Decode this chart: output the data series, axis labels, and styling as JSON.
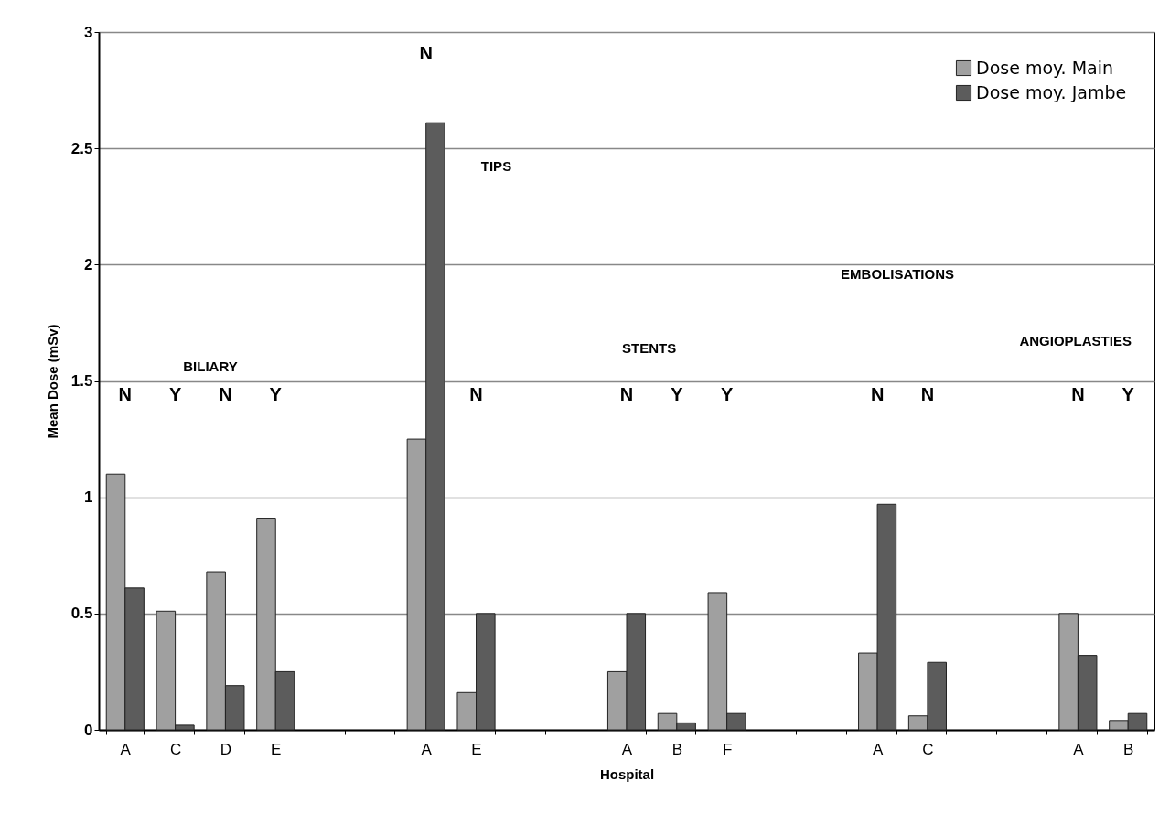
{
  "chart_data": {
    "type": "bar",
    "xlabel": "Hospital",
    "ylabel": "Mean Dose (mSv)",
    "categories": [
      "A",
      "C",
      "D",
      "E",
      null,
      null,
      "A",
      "E",
      null,
      null,
      "A",
      "B",
      "F",
      null,
      null,
      "A",
      "C",
      null,
      null,
      "A",
      "B"
    ],
    "series": [
      {
        "name": "Dose moy. Main",
        "color": "#a0a0a0",
        "values": [
          1.1,
          0.51,
          0.68,
          0.91,
          null,
          null,
          1.25,
          0.16,
          null,
          null,
          0.25,
          0.07,
          0.59,
          null,
          null,
          0.33,
          0.06,
          null,
          null,
          0.5,
          0.04
        ]
      },
      {
        "name": "Dose moy. Jambe",
        "color": "#5c5c5c",
        "values": [
          0.61,
          0.02,
          0.19,
          0.25,
          null,
          null,
          2.61,
          0.5,
          null,
          null,
          0.5,
          0.03,
          0.07,
          null,
          null,
          0.97,
          0.29,
          null,
          null,
          0.32,
          0.07
        ]
      }
    ],
    "ylim": [
      0,
      3
    ],
    "yticks": [
      0,
      0.5,
      1,
      1.5,
      2,
      2.5,
      3
    ],
    "grid": "y",
    "legend": "top right",
    "annotations": [
      "N",
      "Y",
      "N",
      "Y",
      "N",
      "N",
      "N",
      "Y",
      "Y",
      "N",
      "N",
      "N",
      "Y",
      "BILIARY",
      "TIPS",
      "STENTS",
      "EMBOLISATIONS",
      "ANGIOPLASTIES"
    ]
  }
}
